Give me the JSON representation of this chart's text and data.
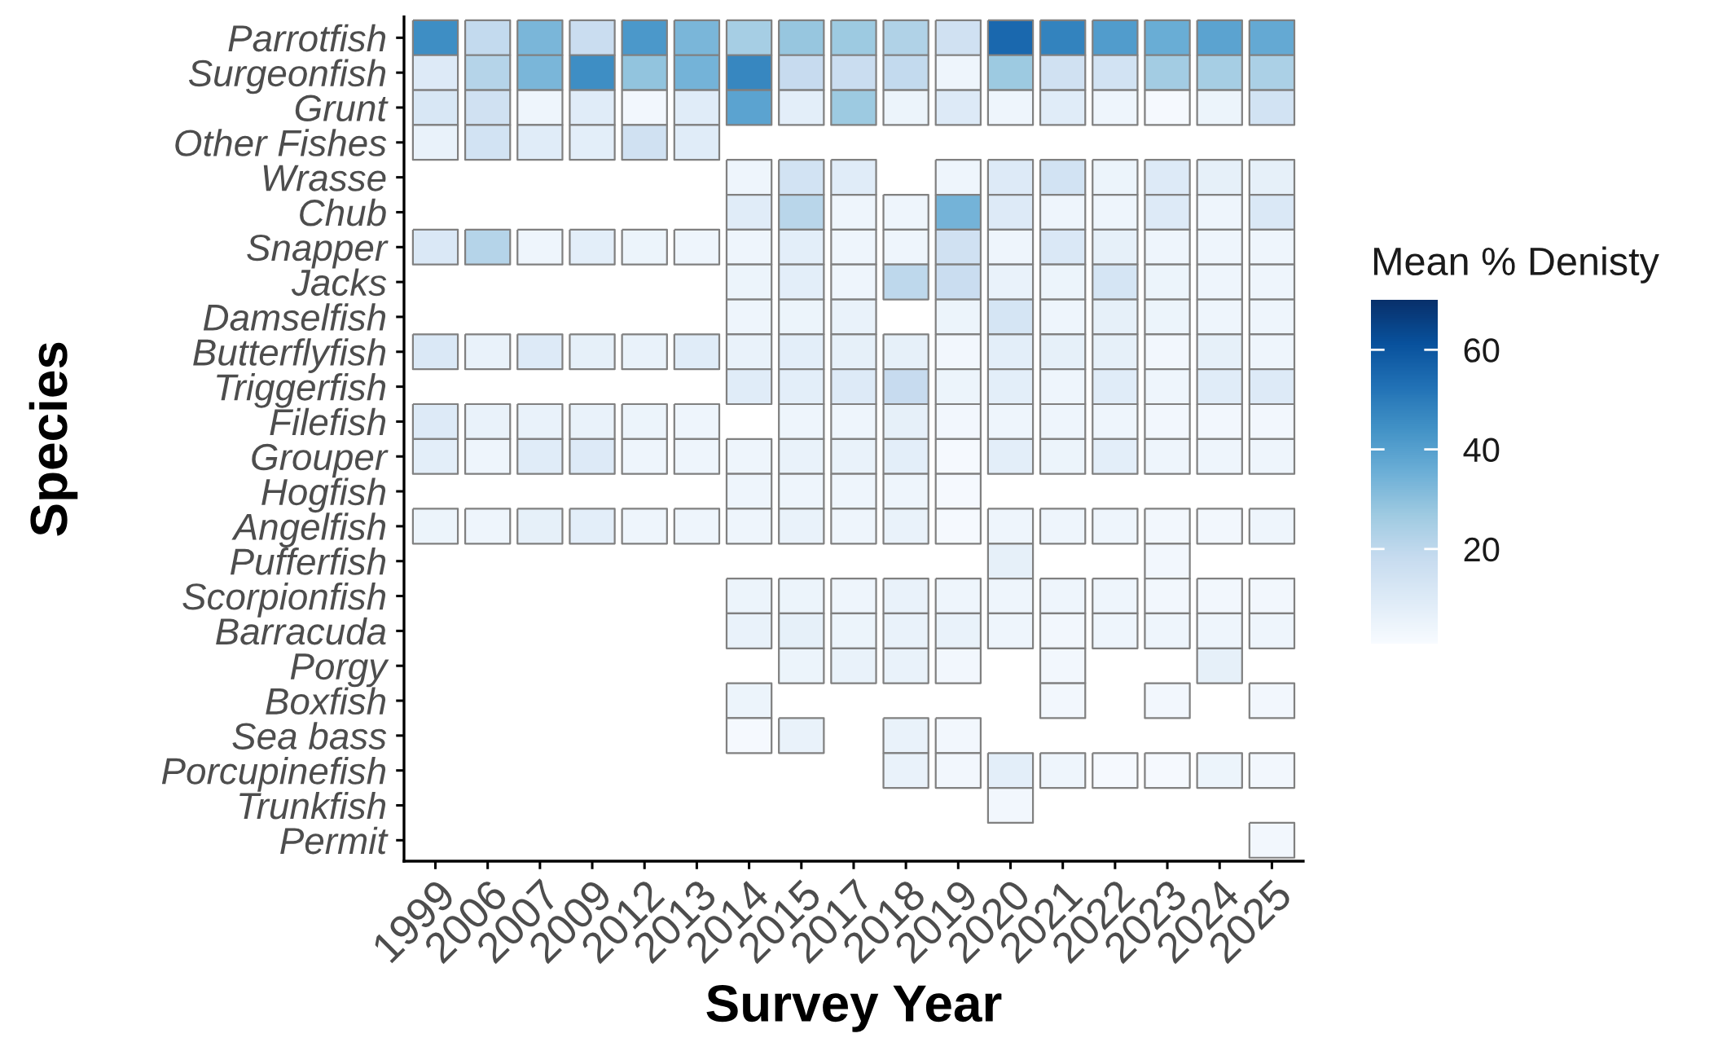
{
  "chart_data": {
    "type": "heatmap",
    "xlabel": "Survey Year",
    "ylabel": "Species",
    "clabel": "Mean % Denisty",
    "categories": [
      "1999",
      "2006",
      "2007",
      "2009",
      "2012",
      "2013",
      "2014",
      "2015",
      "2017",
      "2018",
      "2019",
      "2020",
      "2021",
      "2022",
      "2023",
      "2024",
      "2025"
    ],
    "y_categories": [
      "Parrotfish",
      "Surgeonfish",
      "Grunt",
      "Other Fishes",
      "Wrasse",
      "Chub",
      "Snapper",
      "Jacks",
      "Damselfish",
      "Butterflyfish",
      "Triggerfish",
      "Filefish",
      "Grouper",
      "Hogfish",
      "Angelfish",
      "Pufferfish",
      "Scorpionfish",
      "Barracuda",
      "Porgy",
      "Boxfish",
      "Sea bass",
      "Porcupinefish",
      "Trunkfish",
      "Permit"
    ],
    "cells": [
      [
        45,
        19,
        33,
        17,
        42,
        33,
        25,
        28,
        27,
        23,
        15,
        55,
        48,
        41,
        36,
        39,
        37
      ],
      [
        10,
        22,
        33,
        45,
        29,
        34,
        47,
        18,
        17,
        19,
        4,
        27,
        15,
        14,
        26,
        25,
        24
      ],
      [
        12,
        15,
        4,
        9,
        3,
        9,
        39,
        8,
        27,
        5,
        10,
        4,
        9,
        4,
        2,
        5,
        14
      ],
      [
        6,
        14,
        9,
        8,
        15,
        9,
        null,
        null,
        null,
        null,
        null,
        null,
        null,
        null,
        null,
        null,
        null
      ],
      [
        null,
        null,
        null,
        null,
        null,
        null,
        4,
        14,
        9,
        null,
        4,
        10,
        14,
        5,
        10,
        7,
        7
      ],
      [
        null,
        null,
        null,
        null,
        null,
        null,
        9,
        21,
        4,
        4,
        34,
        10,
        4,
        4,
        10,
        4,
        11
      ],
      [
        11,
        22,
        4,
        8,
        5,
        4,
        4,
        8,
        4,
        4,
        15,
        4,
        11,
        7,
        4,
        4,
        4
      ],
      [
        null,
        null,
        null,
        null,
        null,
        null,
        5,
        8,
        4,
        20,
        17,
        6,
        5,
        13,
        5,
        4,
        4
      ],
      [
        null,
        null,
        null,
        null,
        null,
        null,
        4,
        5,
        6,
        null,
        5,
        13,
        4,
        7,
        5,
        4,
        4
      ],
      [
        11,
        6,
        10,
        7,
        6,
        9,
        6,
        8,
        7,
        7,
        3,
        8,
        7,
        7,
        3,
        7,
        4
      ],
      [
        null,
        null,
        null,
        null,
        null,
        null,
        9,
        8,
        10,
        18,
        5,
        8,
        4,
        9,
        4,
        9,
        10
      ],
      [
        10,
        6,
        6,
        6,
        5,
        4,
        null,
        4,
        4,
        7,
        3,
        4,
        4,
        4,
        3,
        3,
        3
      ],
      [
        8,
        4,
        9,
        10,
        4,
        4,
        4,
        6,
        6,
        8,
        2,
        8,
        5,
        8,
        4,
        4,
        4
      ],
      [
        null,
        null,
        null,
        null,
        null,
        null,
        4,
        4,
        4,
        4,
        2,
        null,
        null,
        null,
        null,
        null,
        null
      ],
      [
        5,
        4,
        7,
        8,
        4,
        4,
        4,
        6,
        4,
        6,
        2,
        4,
        4,
        4,
        3,
        3,
        4
      ],
      [
        null,
        null,
        null,
        null,
        null,
        null,
        null,
        null,
        null,
        null,
        null,
        7,
        null,
        null,
        3,
        null,
        null
      ],
      [
        null,
        null,
        null,
        null,
        null,
        null,
        5,
        5,
        4,
        6,
        4,
        4,
        4,
        4,
        3,
        3,
        3
      ],
      [
        null,
        null,
        null,
        null,
        null,
        null,
        6,
        7,
        5,
        6,
        6,
        4,
        3,
        4,
        4,
        4,
        4
      ],
      [
        null,
        null,
        null,
        null,
        null,
        null,
        null,
        5,
        6,
        6,
        3,
        null,
        3,
        null,
        null,
        7,
        null
      ],
      [
        null,
        null,
        null,
        null,
        null,
        null,
        5,
        null,
        null,
        null,
        null,
        null,
        3,
        null,
        3,
        null,
        3
      ],
      [
        null,
        null,
        null,
        null,
        null,
        null,
        2,
        6,
        null,
        6,
        3,
        null,
        null,
        null,
        null,
        null,
        null
      ],
      [
        null,
        null,
        null,
        null,
        null,
        null,
        null,
        null,
        null,
        6,
        3,
        8,
        4,
        2,
        2,
        5,
        3
      ],
      [
        null,
        null,
        null,
        null,
        null,
        null,
        null,
        null,
        null,
        null,
        null,
        3,
        null,
        null,
        null,
        null,
        null
      ],
      [
        null,
        null,
        null,
        null,
        null,
        null,
        null,
        null,
        null,
        null,
        null,
        null,
        null,
        null,
        null,
        null,
        3
      ]
    ],
    "clim": [
      1,
      70
    ],
    "cticks": [
      20,
      40,
      60
    ]
  }
}
